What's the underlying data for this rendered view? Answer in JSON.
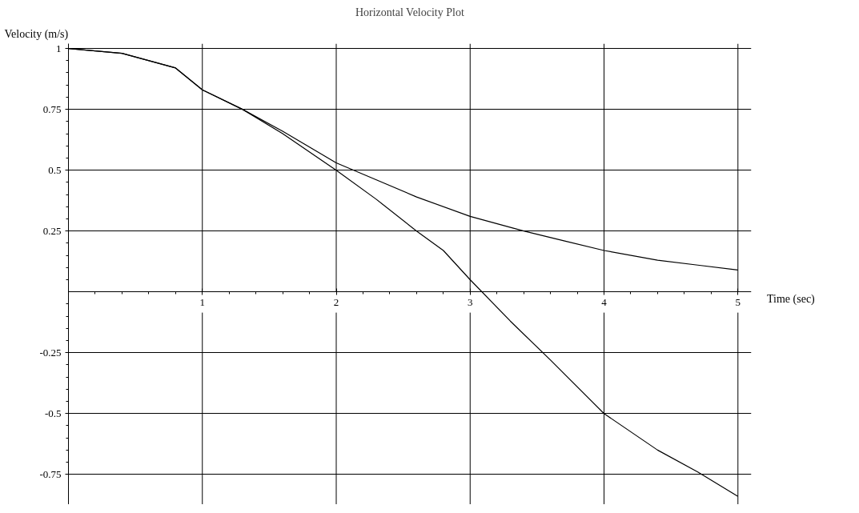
{
  "chart_data": {
    "type": "line",
    "title": "Horizontal Velocity Plot",
    "xlabel": "Time (sec)",
    "ylabel": "Velocity (m/s)",
    "xlim": [
      0,
      5.1
    ],
    "ylim": [
      -0.874,
      1.02
    ],
    "xticks": [
      1,
      2,
      3,
      4,
      5
    ],
    "yticks": [
      -0.75,
      -0.5,
      -0.25,
      0.25,
      0.5,
      0.75,
      1
    ],
    "grid": true,
    "marker": "none",
    "line_style": "solid",
    "series": [
      {
        "color": "#000000",
        "x": [
          0,
          0.4,
          0.8,
          1,
          1.3,
          1.6,
          2,
          2.3,
          2.6,
          2.8,
          3,
          3.3,
          3.6,
          4,
          4.4,
          4.7,
          5
        ],
        "values": [
          1,
          0.98,
          0.92,
          0.83,
          0.75,
          0.65,
          0.5,
          0.38,
          0.25,
          0.17,
          0.05,
          -0.12,
          -0.28,
          -0.5,
          -0.65,
          -0.74,
          -0.84
        ]
      },
      {
        "color": "#000000",
        "x": [
          0,
          0.4,
          0.8,
          1,
          1.3,
          1.6,
          2,
          2.3,
          2.6,
          3,
          3.4,
          3.7,
          4,
          4.4,
          4.7,
          5
        ],
        "values": [
          1,
          0.98,
          0.92,
          0.83,
          0.75,
          0.66,
          0.53,
          0.46,
          0.39,
          0.31,
          0.25,
          0.21,
          0.17,
          0.13,
          0.11,
          0.09
        ]
      }
    ]
  }
}
